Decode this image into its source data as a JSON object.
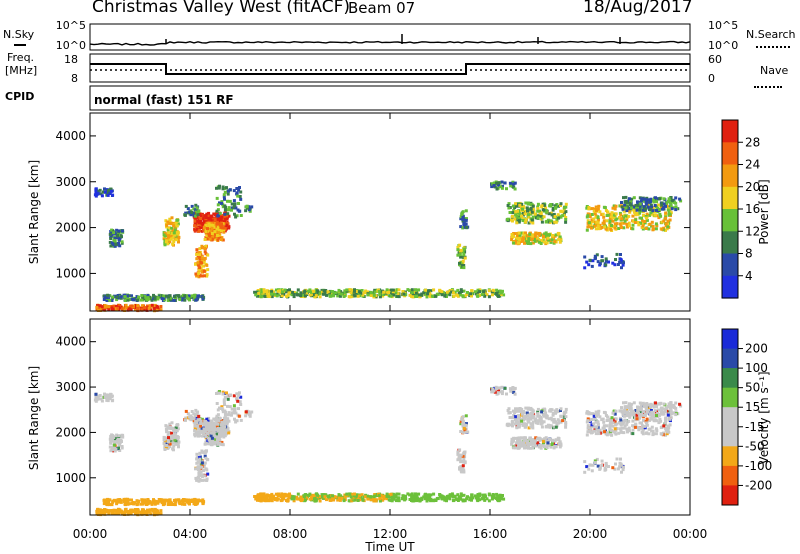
{
  "header": {
    "station": "Christmas Valley West (fitACF)",
    "beam": "Beam 07",
    "date": "18/Aug/2017"
  },
  "labels": {
    "nsky": "N.Sky",
    "nsearch": "N.Search",
    "freq_line1": "Freq.",
    "freq_line2": "[MHz]",
    "nave": "Nave",
    "cpid": "CPID",
    "cpid_value": "normal (fast) 151 RF"
  },
  "noise_panel": {
    "left_ticks": [
      "10^5",
      "10^0"
    ],
    "right_ticks": [
      "10^5",
      "10^0"
    ]
  },
  "freq_panel": {
    "left_ticks": [
      "18",
      "8"
    ],
    "right_ticks": [
      "60",
      "0"
    ]
  },
  "colors": {
    "power": [
      "#2030e0",
      "#2a4aa8",
      "#3a7a4a",
      "#68c038",
      "#f0d020",
      "#f39a10",
      "#f06010",
      "#e02010"
    ],
    "velocity": [
      "#e02010",
      "#f06010",
      "#f3a818",
      "#c8c8c8",
      "#c8c8c8",
      "#6cc03a",
      "#3a8a4a",
      "#2a4aa8",
      "#1a2ad8"
    ]
  },
  "chart_data": [
    {
      "type": "heatmap",
      "title": "",
      "xlabel": "",
      "ylabel": "Slant Range [km]",
      "xlim": [
        0,
        24
      ],
      "ylim": [
        180,
        4500
      ],
      "x_ticks": [],
      "y_ticks": [
        "1000",
        "2000",
        "3000",
        "4000"
      ],
      "colorbar": {
        "label": "Power [dB]",
        "ticks": [
          "4",
          "8",
          "12",
          "16",
          "20",
          "24",
          "28"
        ],
        "range": [
          0,
          32
        ]
      }
    },
    {
      "type": "heatmap",
      "title": "",
      "xlabel": "Time UT",
      "ylabel": "Slant Range [km]",
      "xlim": [
        0,
        24
      ],
      "ylim": [
        180,
        4500
      ],
      "x_ticks": [
        "00:00",
        "04:00",
        "08:00",
        "12:00",
        "16:00",
        "20:00",
        "00:00"
      ],
      "y_ticks": [
        "1000",
        "2000",
        "3000",
        "4000"
      ],
      "colorbar": {
        "label": "Velocity [m s⁻¹]",
        "ticks": [
          "200",
          "100",
          "50",
          "15",
          "-15",
          "-50",
          "-100",
          "-200"
        ]
      }
    }
  ]
}
